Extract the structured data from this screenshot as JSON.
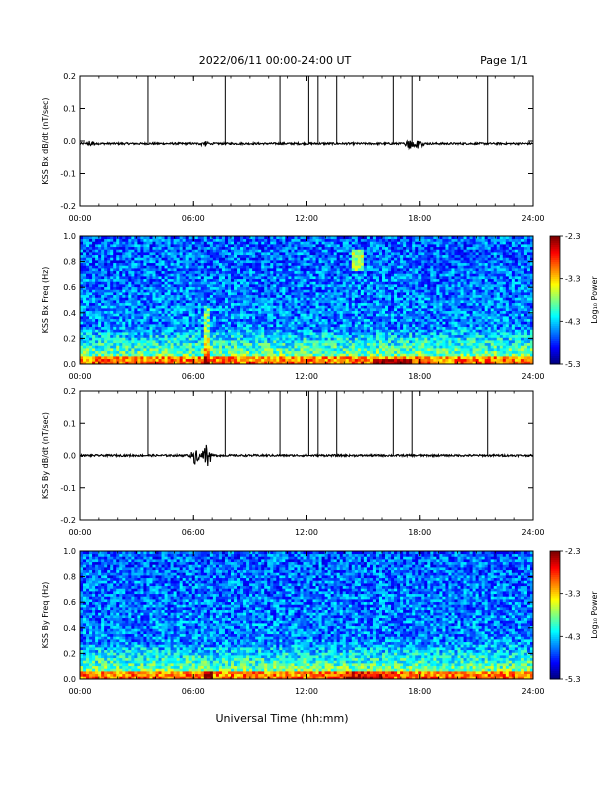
{
  "header": {
    "title": "2022/06/11  00:00-24:00 UT",
    "page": "Page 1/1"
  },
  "xaxis_label": "Universal Time (hh:mm)",
  "chart_data": [
    {
      "type": "line",
      "ylabel": "KSS Bx dB/dt (nT/sec)",
      "xlim": [
        0,
        24
      ],
      "ylim": [
        -0.2,
        0.2
      ],
      "xticks": [
        "00:00",
        "06:00",
        "12:00",
        "18:00",
        "24:00"
      ],
      "yticks": [
        "-0.2",
        "-0.1",
        "0.0",
        "0.1",
        "0.2"
      ],
      "vertical_lines_hours": [
        3.6,
        7.7,
        10.6,
        12.1,
        12.6,
        13.6,
        16.6,
        17.6,
        21.6
      ],
      "baseline": -0.008,
      "bursts": [
        {
          "x": 0.6,
          "amp": 0.012
        },
        {
          "x": 6.6,
          "amp": 0.01
        },
        {
          "x": 17.5,
          "amp": 0.025
        },
        {
          "x": 17.9,
          "amp": 0.015
        }
      ]
    },
    {
      "type": "heatmap",
      "ylabel": "KSS Bx Freq (Hz)",
      "xlim": [
        0,
        24
      ],
      "ylim": [
        0.0,
        1.0
      ],
      "xticks": [
        "00:00",
        "06:00",
        "12:00",
        "18:00",
        "24:00"
      ],
      "yticks": [
        "0.0",
        "0.2",
        "0.4",
        "0.6",
        "0.8",
        "1.0"
      ],
      "colorbar": {
        "label": "Log₁₀ Power",
        "ticks": [
          "-2.3",
          "-3.3",
          "-4.3",
          "-5.3"
        ],
        "range": [
          -5.3,
          -2.3
        ]
      }
    },
    {
      "type": "line",
      "ylabel": "KSS By dB/dt (nT/sec)",
      "xlim": [
        0,
        24
      ],
      "ylim": [
        -0.2,
        0.2
      ],
      "xticks": [
        "00:00",
        "06:00",
        "12:00",
        "18:00",
        "24:00"
      ],
      "yticks": [
        "-0.2",
        "-0.1",
        "0.0",
        "0.1",
        "0.2"
      ],
      "vertical_lines_hours": [
        3.6,
        7.7,
        10.6,
        12.1,
        12.6,
        13.6,
        16.6,
        17.6,
        21.6
      ],
      "baseline": 0.0,
      "bursts": [
        {
          "x": 6.1,
          "amp": 0.03
        },
        {
          "x": 6.7,
          "amp": 0.045
        }
      ]
    },
    {
      "type": "heatmap",
      "ylabel": "KSS By Freq (Hz)",
      "xlim": [
        0,
        24
      ],
      "ylim": [
        0.0,
        1.0
      ],
      "xticks": [
        "00:00",
        "06:00",
        "12:00",
        "18:00",
        "24:00"
      ],
      "yticks": [
        "0.0",
        "0.2",
        "0.4",
        "0.6",
        "0.8",
        "1.0"
      ],
      "colorbar": {
        "label": "Log₁₀ Power",
        "ticks": [
          "-2.3",
          "-3.3",
          "-4.3",
          "-5.3"
        ],
        "range": [
          -5.3,
          -2.3
        ]
      }
    }
  ]
}
